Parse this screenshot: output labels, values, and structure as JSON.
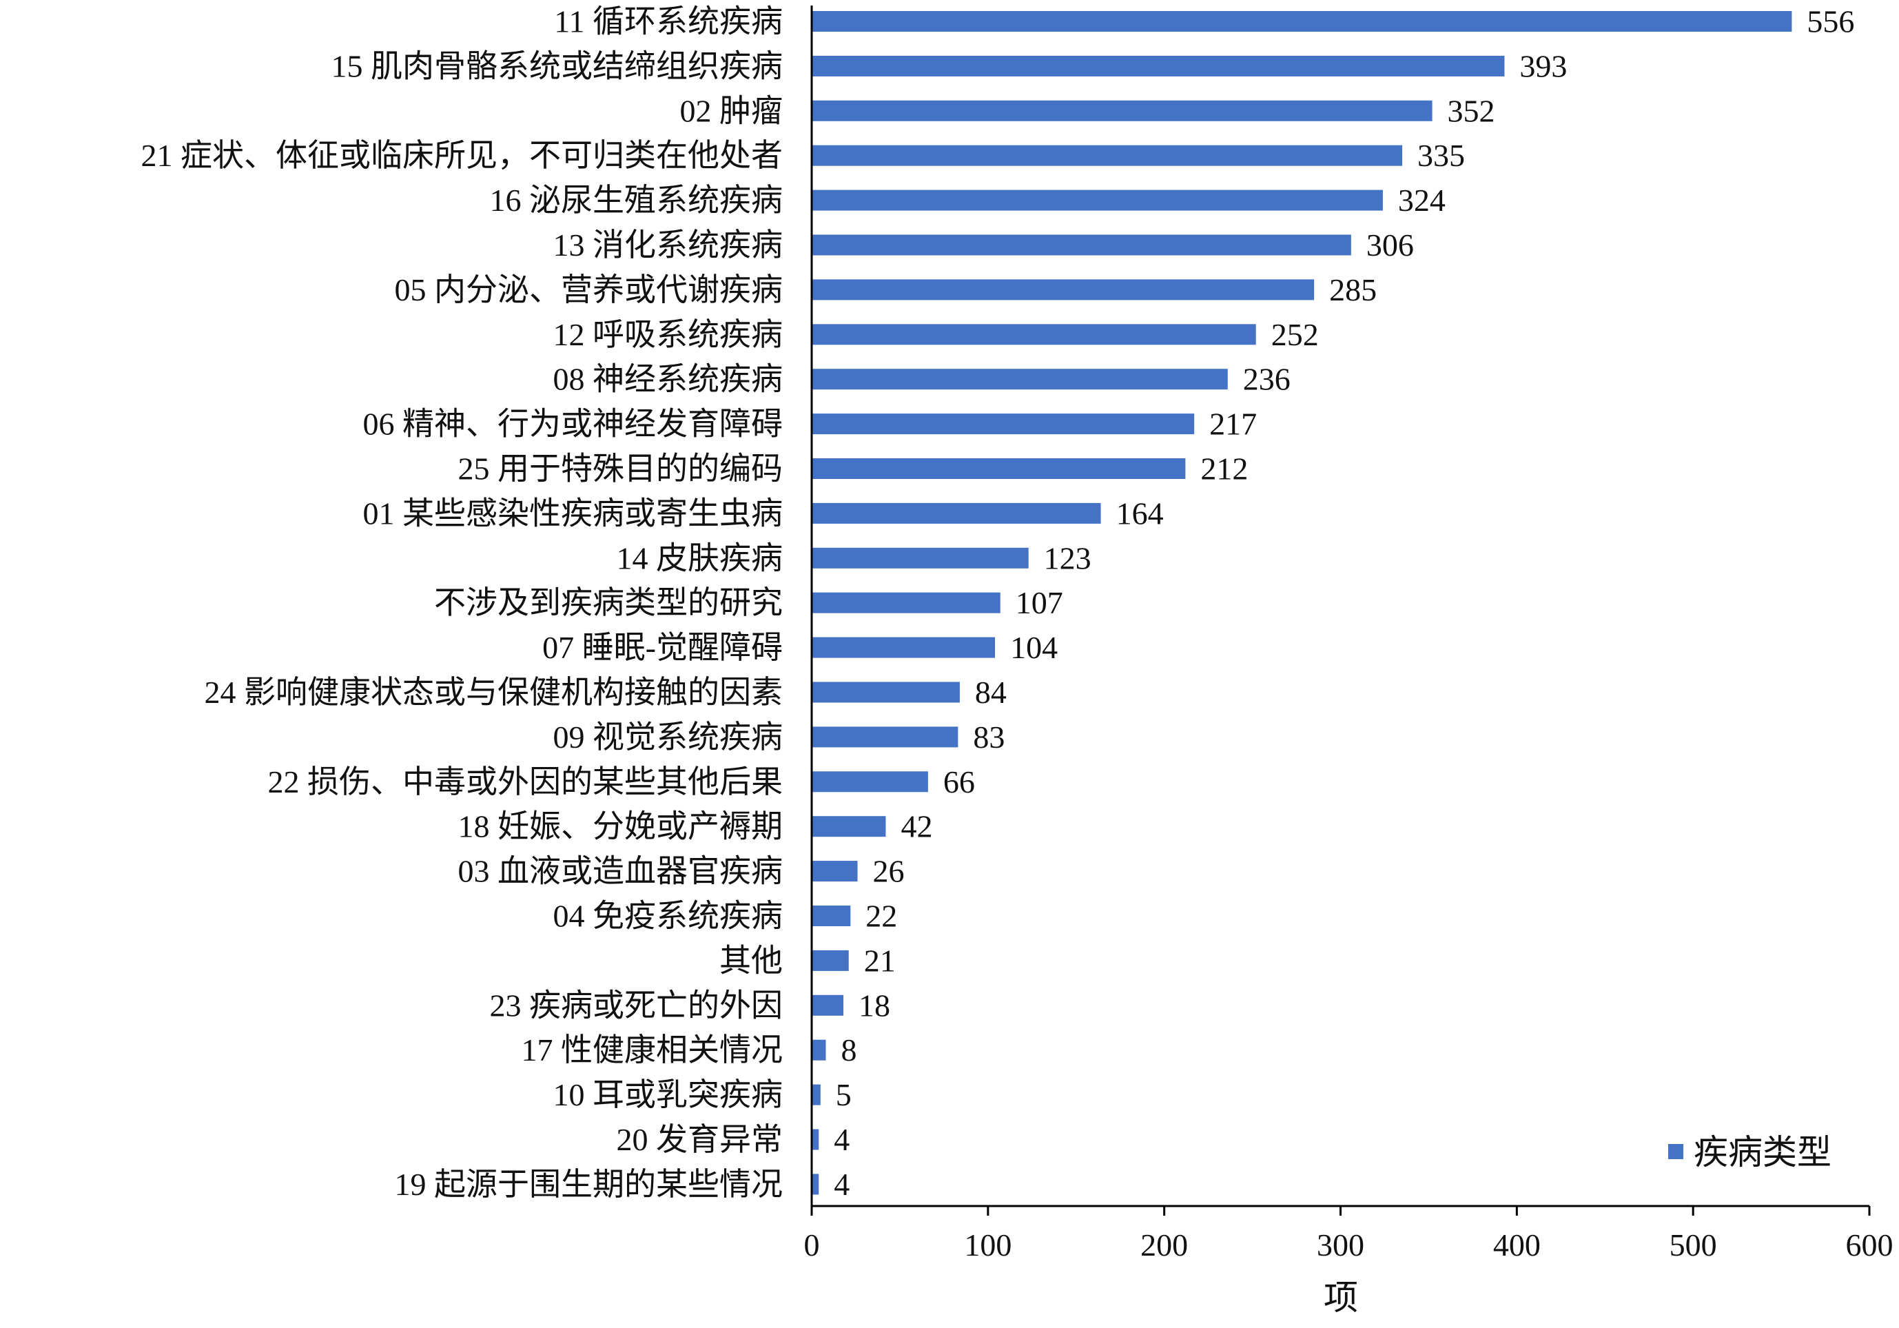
{
  "chart_data": {
    "type": "bar",
    "orientation": "horizontal",
    "categories": [
      "11 循环系统疾病",
      "15 肌肉骨骼系统或结缔组织疾病",
      "02 肿瘤",
      "21 症状、体征或临床所见，不可归类在他处者",
      "16 泌尿生殖系统疾病",
      "13 消化系统疾病",
      "05 内分泌、营养或代谢疾病",
      "12 呼吸系统疾病",
      "08 神经系统疾病",
      "06 精神、行为或神经发育障碍",
      "25 用于特殊目的的编码",
      "01 某些感染性疾病或寄生虫病",
      "14 皮肤疾病",
      "不涉及到疾病类型的研究",
      "07 睡眠-觉醒障碍",
      "24 影响健康状态或与保健机构接触的因素",
      "09 视觉系统疾病",
      "22 损伤、中毒或外因的某些其他后果",
      "18 妊娠、分娩或产褥期",
      "03 血液或造血器官疾病",
      "04 免疫系统疾病",
      "其他",
      "23 疾病或死亡的外因",
      "17 性健康相关情况",
      "10 耳或乳突疾病",
      "20 发育异常",
      "19 起源于围生期的某些情况"
    ],
    "series": [
      {
        "name": "疾病类型",
        "values": [
          556,
          393,
          352,
          335,
          324,
          306,
          285,
          252,
          236,
          217,
          212,
          164,
          123,
          107,
          104,
          84,
          83,
          66,
          42,
          26,
          22,
          21,
          18,
          8,
          5,
          4,
          4
        ],
        "color": "#4472C4"
      }
    ],
    "xlabel": "项",
    "ylabel": "",
    "xlim": [
      0,
      600
    ],
    "xticks": [
      0,
      100,
      200,
      300,
      400,
      500,
      600
    ],
    "grid": false,
    "legend": {
      "position": "bottom-right"
    }
  }
}
